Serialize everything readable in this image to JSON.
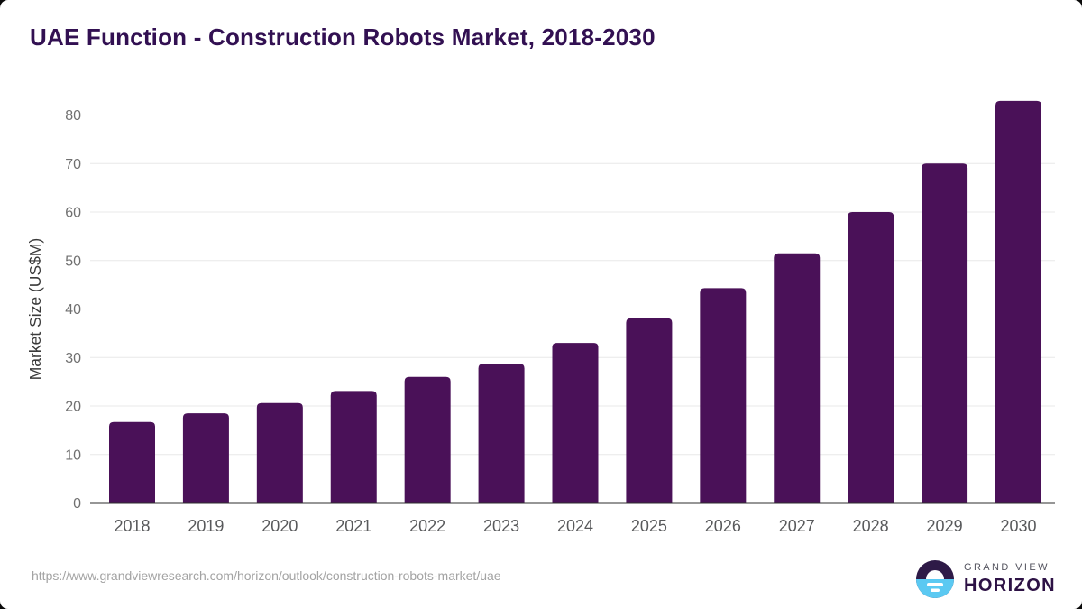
{
  "title": "UAE Function - Construction Robots Market, 2018-2030",
  "chart_data": {
    "type": "bar",
    "title": "UAE Function - Construction Robots Market, 2018-2030",
    "categories": [
      "2018",
      "2019",
      "2020",
      "2021",
      "2022",
      "2023",
      "2024",
      "2025",
      "2026",
      "2027",
      "2028",
      "2029",
      "2030"
    ],
    "values": [
      16.7,
      18.5,
      20.6,
      23.1,
      26.0,
      28.7,
      33.0,
      38.1,
      44.3,
      51.5,
      60.0,
      70.0,
      82.9
    ],
    "xlabel": "",
    "ylabel": "Market Size (US$M)",
    "ylim": [
      0,
      80
    ],
    "ytick_step": 10,
    "yticks": [
      "0",
      "10",
      "20",
      "30",
      "40",
      "50",
      "60",
      "70",
      "80"
    ],
    "grid": true,
    "legend_position": "none",
    "bar_color": "#4a1158",
    "grid_color": "#e8e8e8",
    "axis_color": "#2e2e2e",
    "tick_label_color": "#707070",
    "x_label_color": "#58595b",
    "ylabel_color": "#3a3a3a"
  },
  "footer": {
    "source_url": "https://www.grandviewresearch.com/horizon/outlook/construction-robots-market/uae",
    "logo": {
      "line1": "GRAND VIEW",
      "line2": "HORIZON",
      "mark_top_color": "#2e1a47",
      "mark_bottom_color": "#5bc9f2"
    }
  }
}
